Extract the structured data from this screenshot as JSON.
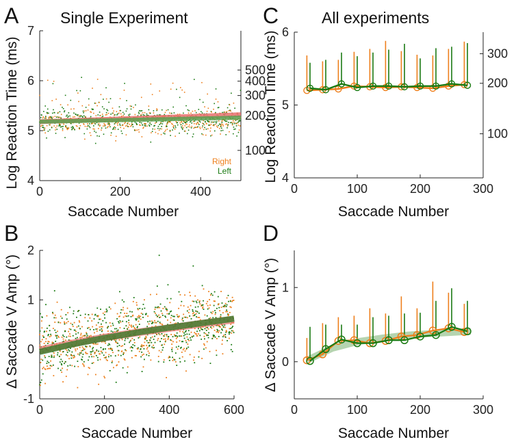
{
  "colors": {
    "right": "#ee7e1a",
    "left": "#1a7a12",
    "fit_right": "#e8706e",
    "fit_left": "#5aa050",
    "axis": "#222222"
  },
  "chart_data": [
    {
      "id": "A",
      "panel_label": "A",
      "title": "Single Experiment",
      "type": "scatter",
      "xlabel": "Saccade Number",
      "ylabel": "Log Reaction Time (ms)",
      "xlim": [
        0,
        500
      ],
      "ylim": [
        4,
        7
      ],
      "xticks": [
        "0",
        "200",
        "400"
      ],
      "yticks": [
        "4",
        "5",
        "6",
        "7"
      ],
      "right_axis_ticks": [
        "100",
        "200",
        "300",
        "400",
        "500"
      ],
      "legend": {
        "right": "Right",
        "left": "Left",
        "placement": "bottom-right"
      },
      "fit_right": {
        "x": [
          0,
          500
        ],
        "y": [
          5.18,
          5.32
        ]
      },
      "fit_left": {
        "x": [
          0,
          500
        ],
        "y": [
          5.18,
          5.26
        ]
      },
      "scatter_center": 5.2,
      "scatter_spread_note": "individual saccades, mostly 4.9–5.6"
    },
    {
      "id": "B",
      "panel_label": "B",
      "type": "scatter",
      "xlabel": "Saccade Number",
      "ylabel": "Δ Saccade V Amp (°)",
      "xlim": [
        0,
        600
      ],
      "ylim": [
        -1,
        2
      ],
      "xticks": [
        "0",
        "200",
        "400",
        "600"
      ],
      "yticks": [
        "-1",
        "0",
        "1",
        "2"
      ],
      "fit_right": {
        "x": [
          0,
          100,
          200,
          300,
          400,
          500,
          600
        ],
        "y": [
          -0.02,
          0.12,
          0.24,
          0.34,
          0.43,
          0.52,
          0.6
        ]
      },
      "fit_left": {
        "x": [
          0,
          100,
          200,
          300,
          400,
          500,
          600
        ],
        "y": [
          -0.05,
          0.1,
          0.23,
          0.34,
          0.44,
          0.53,
          0.62
        ]
      },
      "scatter_spread_note": "individual saccades, mostly -0.6 to 1.2"
    },
    {
      "id": "C",
      "panel_label": "C",
      "title": "All experiments",
      "type": "line",
      "xlabel": "Saccade Number",
      "ylabel": "Log Reaction Time (ms)",
      "xlim": [
        0,
        300
      ],
      "ylim": [
        4,
        6
      ],
      "xticks": [
        "0",
        "100",
        "200",
        "300"
      ],
      "yticks": [
        "4",
        "5",
        "6"
      ],
      "right_axis_ticks": [
        "100",
        "200",
        "300"
      ],
      "series": [
        {
          "name": "Right",
          "x": [
            20,
            45,
            70,
            95,
            120,
            145,
            170,
            195,
            220,
            245,
            270
          ],
          "y": [
            5.2,
            5.21,
            5.22,
            5.26,
            5.25,
            5.24,
            5.25,
            5.24,
            5.23,
            5.26,
            5.28
          ],
          "err_top": [
            5.68,
            5.6,
            5.62,
            5.73,
            5.77,
            5.88,
            5.74,
            5.69,
            5.68,
            5.77,
            5.87
          ]
        },
        {
          "name": "Left",
          "x": [
            25,
            50,
            75,
            100,
            125,
            150,
            175,
            200,
            225,
            250,
            275
          ],
          "y": [
            5.23,
            5.21,
            5.29,
            5.24,
            5.26,
            5.26,
            5.25,
            5.26,
            5.26,
            5.29,
            5.27
          ],
          "err_top": [
            5.58,
            5.62,
            5.72,
            5.67,
            5.72,
            5.76,
            5.84,
            5.64,
            5.78,
            5.8,
            5.85
          ]
        }
      ]
    },
    {
      "id": "D",
      "panel_label": "D",
      "type": "line",
      "xlabel": "Saccade Number",
      "ylabel": "Δ Saccade V Amp (°)",
      "xlim": [
        0,
        300
      ],
      "ylim": [
        -0.5,
        1.5
      ],
      "xticks": [
        "0",
        "100",
        "200",
        "300"
      ],
      "yticks": [
        "0",
        "1"
      ],
      "series": [
        {
          "name": "Right",
          "x": [
            20,
            45,
            70,
            95,
            120,
            145,
            170,
            195,
            220,
            245,
            270
          ],
          "y": [
            0.02,
            0.1,
            0.28,
            0.29,
            0.25,
            0.28,
            0.34,
            0.36,
            0.42,
            0.45,
            0.4
          ],
          "err_top": [
            0.32,
            0.52,
            0.6,
            0.62,
            0.72,
            0.65,
            0.88,
            0.72,
            1.08,
            0.93,
            0.78
          ]
        },
        {
          "name": "Left",
          "x": [
            25,
            50,
            75,
            100,
            125,
            150,
            175,
            200,
            225,
            250,
            275
          ],
          "y": [
            0.01,
            0.17,
            0.3,
            0.25,
            0.25,
            0.29,
            0.29,
            0.34,
            0.36,
            0.47,
            0.41
          ]
        },
        {
          "name": "Left-err",
          "err_top": [
            0.47,
            0.5,
            0.5,
            0.5,
            0.6,
            0.62,
            0.65,
            0.66,
            0.82,
            0.99,
            0.82
          ]
        }
      ],
      "fit_band": {
        "x": [
          20,
          60,
          100,
          140,
          180,
          220,
          260,
          280
        ],
        "y": [
          0.02,
          0.18,
          0.27,
          0.32,
          0.36,
          0.38,
          0.4,
          0.41
        ]
      }
    }
  ]
}
